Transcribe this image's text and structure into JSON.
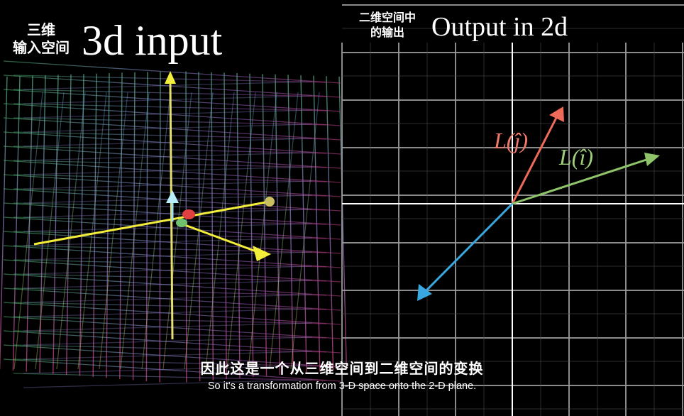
{
  "left_panel": {
    "title": "3d input",
    "title_cn_line1": "三维",
    "title_cn_line2": "输入空间"
  },
  "right_panel": {
    "title": "Output in 2d",
    "title_cn_line1": "二维空间中",
    "title_cn_line2": "的输出",
    "vector_labels": {
      "l_j": "L(ĵ)",
      "l_i": "L(î)"
    }
  },
  "subtitles": {
    "chinese": "因此这是一个从三维空间到二维空间的变换",
    "english": "So it's a transformation from 3-D space onto the 2-D plane."
  },
  "colors": {
    "background": "#000000",
    "grid_right": "#9a9a9a",
    "axis": "#ffffff",
    "l_j_vector": "#f06a5a",
    "l_i_vector": "#8fc46a",
    "third_vector": "#3aa8e0",
    "basis_yellow": "#f2ee3a"
  }
}
